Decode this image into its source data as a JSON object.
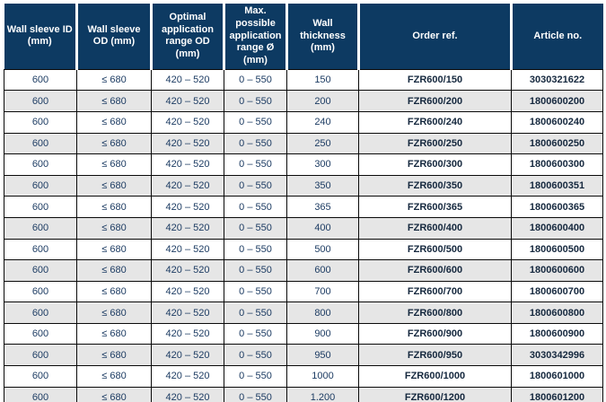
{
  "colors": {
    "header_bg": "#0d3a62",
    "header_text": "#ffffff",
    "row_bg": "#ffffff",
    "row_alt_bg": "#e6e6e6",
    "cell_text": "#1d3c63",
    "ref_text": "#15283e",
    "grid_border": "#0a0a0a",
    "bottom_bar": "#0d3a62"
  },
  "table": {
    "columns": [
      "Wall sleeve ID (mm)",
      "Wall sleeve OD (mm)",
      "Optimal application range OD (mm)",
      "Max. possible application range Ø (mm)",
      "Wall thickness (mm)",
      "Order ref.",
      "Article no."
    ],
    "rows": [
      [
        "600",
        "≤ 680",
        "420 – 520",
        "0 – 550",
        "150",
        "FZR600/150",
        "3030321622"
      ],
      [
        "600",
        "≤ 680",
        "420 – 520",
        "0 – 550",
        "200",
        "FZR600/200",
        "1800600200"
      ],
      [
        "600",
        "≤ 680",
        "420 – 520",
        "0 – 550",
        "240",
        "FZR600/240",
        "1800600240"
      ],
      [
        "600",
        "≤ 680",
        "420 – 520",
        "0 – 550",
        "250",
        "FZR600/250",
        "1800600250"
      ],
      [
        "600",
        "≤ 680",
        "420 – 520",
        "0 – 550",
        "300",
        "FZR600/300",
        "1800600300"
      ],
      [
        "600",
        "≤ 680",
        "420 – 520",
        "0 – 550",
        "350",
        "FZR600/350",
        "1800600351"
      ],
      [
        "600",
        "≤ 680",
        "420 – 520",
        "0 – 550",
        "365",
        "FZR600/365",
        "1800600365"
      ],
      [
        "600",
        "≤ 680",
        "420 – 520",
        "0 – 550",
        "400",
        "FZR600/400",
        "1800600400"
      ],
      [
        "600",
        "≤ 680",
        "420 – 520",
        "0 – 550",
        "500",
        "FZR600/500",
        "1800600500"
      ],
      [
        "600",
        "≤ 680",
        "420 – 520",
        "0 – 550",
        "600",
        "FZR600/600",
        "1800600600"
      ],
      [
        "600",
        "≤ 680",
        "420 – 520",
        "0 – 550",
        "700",
        "FZR600/700",
        "1800600700"
      ],
      [
        "600",
        "≤ 680",
        "420 – 520",
        "0 – 550",
        "800",
        "FZR600/800",
        "1800600800"
      ],
      [
        "600",
        "≤ 680",
        "420 – 520",
        "0 – 550",
        "900",
        "FZR600/900",
        "1800600900"
      ],
      [
        "600",
        "≤ 680",
        "420 – 520",
        "0 – 550",
        "950",
        "FZR600/950",
        "3030342996"
      ],
      [
        "600",
        "≤ 680",
        "420 – 520",
        "0 – 550",
        "1000",
        "FZR600/1000",
        "1800601000"
      ],
      [
        "600",
        "≤ 680",
        "420 – 520",
        "0 – 550",
        "1.200",
        "FZR600/1200",
        "1800601200"
      ]
    ],
    "column_keys": [
      "wall-sleeve-id",
      "wall-sleeve-od",
      "optimal-application-range-od",
      "max-possible-application-range",
      "wall-thickness",
      "order-ref",
      "article-no"
    ]
  }
}
